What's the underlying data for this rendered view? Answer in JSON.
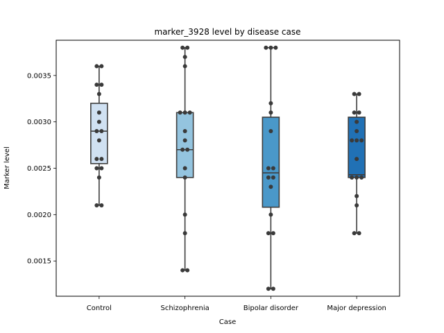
{
  "chart_data": {
    "type": "box",
    "title": "marker_3928 level by disease case",
    "xlabel": "Case",
    "ylabel": "Marker level",
    "ylim": [
      0.00112,
      0.00388
    ],
    "yticks": [
      0.0015,
      0.002,
      0.0025,
      0.003,
      0.0035
    ],
    "ytick_labels": [
      "0.0015",
      "0.0020",
      "0.0025",
      "0.0030",
      "0.0035"
    ],
    "categories": [
      "Control",
      "Schizophrenia",
      "Bipolar disorder",
      "Major depression"
    ],
    "colors": [
      "#d0e1f2",
      "#94c4df",
      "#4a98c9",
      "#2171b5"
    ],
    "boxes": [
      {
        "category": "Control",
        "q1": 0.00255,
        "median": 0.0029,
        "q3": 0.0032,
        "whisker_low": 0.0021,
        "whisker_high": 0.0036
      },
      {
        "category": "Schizophrenia",
        "q1": 0.0024,
        "median": 0.0027,
        "q3": 0.0031,
        "whisker_low": 0.0014,
        "whisker_high": 0.0038
      },
      {
        "category": "Bipolar disorder",
        "q1": 0.00208,
        "median": 0.00245,
        "q3": 0.00305,
        "whisker_low": 0.0012,
        "whisker_high": 0.0038
      },
      {
        "category": "Major depression",
        "q1": 0.0024,
        "median": 0.00243,
        "q3": 0.00305,
        "whisker_low": 0.0018,
        "whisker_high": 0.0033
      }
    ],
    "points": [
      [
        0.0036,
        0.0036,
        0.0034,
        0.0034,
        0.0033,
        0.0031,
        0.003,
        0.0029,
        0.0029,
        0.0028,
        0.0026,
        0.0026,
        0.0025,
        0.0025,
        0.0024,
        0.0021,
        0.0021
      ],
      [
        0.0038,
        0.0038,
        0.0037,
        0.0036,
        0.0031,
        0.0031,
        0.0031,
        0.0029,
        0.0028,
        0.0027,
        0.0027,
        0.0025,
        0.0024,
        0.002,
        0.0018,
        0.0014,
        0.0014
      ],
      [
        0.0038,
        0.0038,
        0.0038,
        0.0032,
        0.0031,
        0.0029,
        0.0025,
        0.0025,
        0.0024,
        0.0024,
        0.0023,
        0.002,
        0.0018,
        0.0018,
        0.0012,
        0.0012
      ],
      [
        0.0033,
        0.0033,
        0.0031,
        0.0031,
        0.003,
        0.0029,
        0.0028,
        0.0028,
        0.0028,
        0.0026,
        0.0024,
        0.0024,
        0.0024,
        0.0022,
        0.0021,
        0.0018,
        0.0018
      ]
    ],
    "grid": false,
    "legend": "none"
  }
}
